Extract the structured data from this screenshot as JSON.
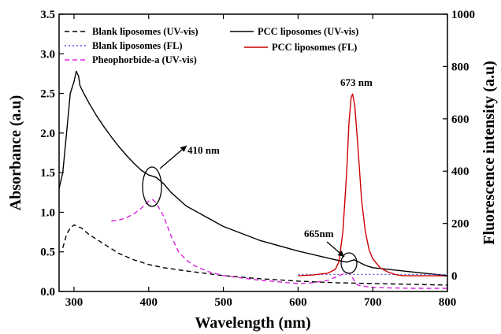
{
  "chart_data": {
    "type": "line",
    "xlabel": "Wavelength (nm)",
    "ylabel_left": "Absorbance (a.u)",
    "ylabel_right": "Fluorescence intensity (a.u)",
    "xlim": [
      280,
      800
    ],
    "ylim_left": [
      0.0,
      3.5
    ],
    "ylim_right": [
      -60,
      1000
    ],
    "xticks": [
      "300",
      "400",
      "500",
      "600",
      "700",
      "800"
    ],
    "yticks_left": [
      "0.0",
      "0.5",
      "1.0",
      "1.5",
      "2.0",
      "2.5",
      "3.0",
      "3.5"
    ],
    "yticks_right": [
      "0",
      "200",
      "400",
      "600",
      "800",
      "1000"
    ],
    "grid": false,
    "legend_position": "top",
    "series": [
      {
        "name": "Blank liposomes (UV-vis)",
        "axis": "left",
        "color": "#000000",
        "style": "dashed",
        "x": [
          285,
          290,
          295,
          300,
          310,
          320,
          340,
          360,
          380,
          400,
          420,
          450,
          500,
          550,
          600,
          650,
          700,
          750,
          800
        ],
        "y": [
          0.55,
          0.72,
          0.8,
          0.84,
          0.8,
          0.72,
          0.6,
          0.48,
          0.4,
          0.34,
          0.3,
          0.26,
          0.2,
          0.16,
          0.13,
          0.11,
          0.1,
          0.09,
          0.08
        ]
      },
      {
        "name": "PCC liposomes (UV-vis)",
        "axis": "left",
        "color": "#000000",
        "style": "solid",
        "x": [
          280,
          285,
          290,
          295,
          300,
          303,
          306,
          308,
          312,
          316,
          320,
          330,
          340,
          350,
          360,
          370,
          380,
          390,
          400,
          410,
          420,
          430,
          450,
          500,
          550,
          600,
          650,
          665,
          675,
          690,
          700,
          750,
          800
        ],
        "y": [
          1.3,
          1.5,
          2.0,
          2.5,
          2.65,
          2.78,
          2.72,
          2.6,
          2.52,
          2.45,
          2.38,
          2.22,
          2.08,
          1.95,
          1.83,
          1.72,
          1.62,
          1.53,
          1.47,
          1.44,
          1.36,
          1.25,
          1.08,
          0.82,
          0.64,
          0.51,
          0.4,
          0.37,
          0.4,
          0.33,
          0.3,
          0.25,
          0.2
        ]
      },
      {
        "name": "Blank liposomes (FL)",
        "axis": "right",
        "color": "#5555dd",
        "style": "dotted",
        "x": [
          600,
          650,
          700,
          750,
          800
        ],
        "y": [
          5,
          5,
          5,
          5,
          5
        ]
      },
      {
        "name": "PCC liposomes (FL)",
        "axis": "right",
        "color": "#cc0000",
        "style": "solid",
        "x": [
          600,
          620,
          640,
          650,
          655,
          660,
          665,
          668,
          671,
          673,
          676,
          680,
          685,
          690,
          695,
          700,
          710,
          720,
          730,
          740,
          800
        ],
        "y": [
          0,
          3,
          10,
          25,
          55,
          170,
          390,
          580,
          680,
          695,
          650,
          500,
          290,
          170,
          100,
          65,
          30,
          15,
          5,
          0,
          0
        ]
      },
      {
        "name": "Pheophorbide-a (UV-vis)",
        "axis": "left",
        "color": "#dd22dd",
        "style": "dashed",
        "x": [
          350,
          360,
          370,
          380,
          390,
          400,
          405,
          410,
          420,
          430,
          440,
          450,
          460,
          480,
          500,
          550,
          600,
          620,
          640,
          660,
          665,
          670,
          675,
          680,
          700,
          750,
          800
        ],
        "y": [
          0.89,
          0.9,
          0.93,
          0.98,
          1.05,
          1.14,
          1.16,
          1.12,
          0.95,
          0.7,
          0.5,
          0.4,
          0.33,
          0.25,
          0.2,
          0.14,
          0.1,
          0.11,
          0.14,
          0.22,
          0.24,
          0.22,
          0.14,
          0.08,
          0.05,
          0.04,
          0.04
        ]
      }
    ],
    "annotations": [
      {
        "text": "673 nm"
      },
      {
        "text": "410 nm"
      },
      {
        "text": "665nm"
      }
    ]
  }
}
